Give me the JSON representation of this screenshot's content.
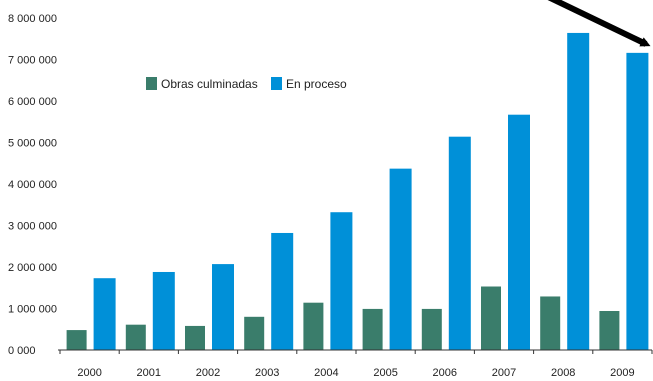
{
  "chart_data": {
    "type": "bar",
    "categories": [
      "2000",
      "2001",
      "2002",
      "2003",
      "2004",
      "2005",
      "2006",
      "2007",
      "2008",
      "2009"
    ],
    "series": [
      {
        "name": "Obras culminadas",
        "color": "#3a7d6b",
        "values": [
          480000,
          610000,
          580000,
          800000,
          1140000,
          990000,
          990000,
          1530000,
          1290000,
          940000
        ]
      },
      {
        "name": "En proceso",
        "color": "#0090d8",
        "values": [
          1730000,
          1880000,
          2070000,
          2820000,
          3320000,
          4370000,
          5140000,
          5670000,
          7640000,
          7160000
        ]
      }
    ],
    "ylim": [
      0,
      8000000
    ],
    "yticks": [
      0,
      1000000,
      2000000,
      3000000,
      4000000,
      5000000,
      6000000,
      7000000,
      8000000
    ],
    "ytick_labels": [
      "0 000",
      "1 000 000",
      "2 000 000",
      "3 000 000",
      "4 000 000",
      "5 000 000",
      "6 000 000",
      "7 000 000",
      "8 000 000"
    ],
    "legend_position": "top-left",
    "grid": false,
    "annotation": "arrow pointing down-right toward the 2009 En proceso bar",
    "annotation_color": "#000000"
  }
}
